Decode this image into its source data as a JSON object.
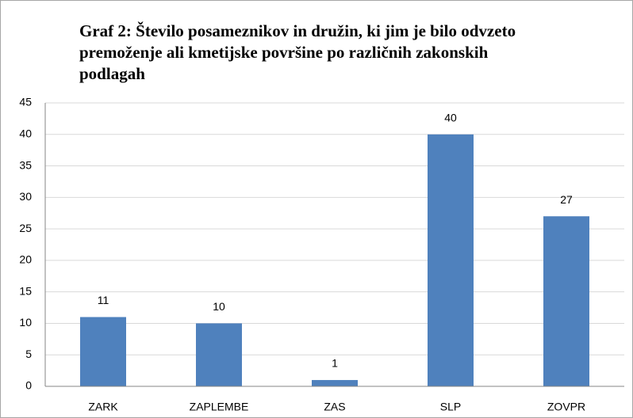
{
  "chart_data": {
    "type": "bar",
    "title": "Graf 2: Število posameznikov in družin, ki jim je bilo odvzeto premoženje ali kmetijske površine po različnih zakonskih podlagah",
    "categories": [
      "ZARK",
      "ZAPLEMBE",
      "ZAS",
      "SLP",
      "ZOVPR"
    ],
    "values": [
      11,
      10,
      1,
      40,
      27
    ],
    "color": "#4f81bd",
    "ylim": [
      0,
      45
    ],
    "yticks": [
      0,
      5,
      10,
      15,
      20,
      25,
      30,
      35,
      40,
      45
    ],
    "grid": true
  }
}
